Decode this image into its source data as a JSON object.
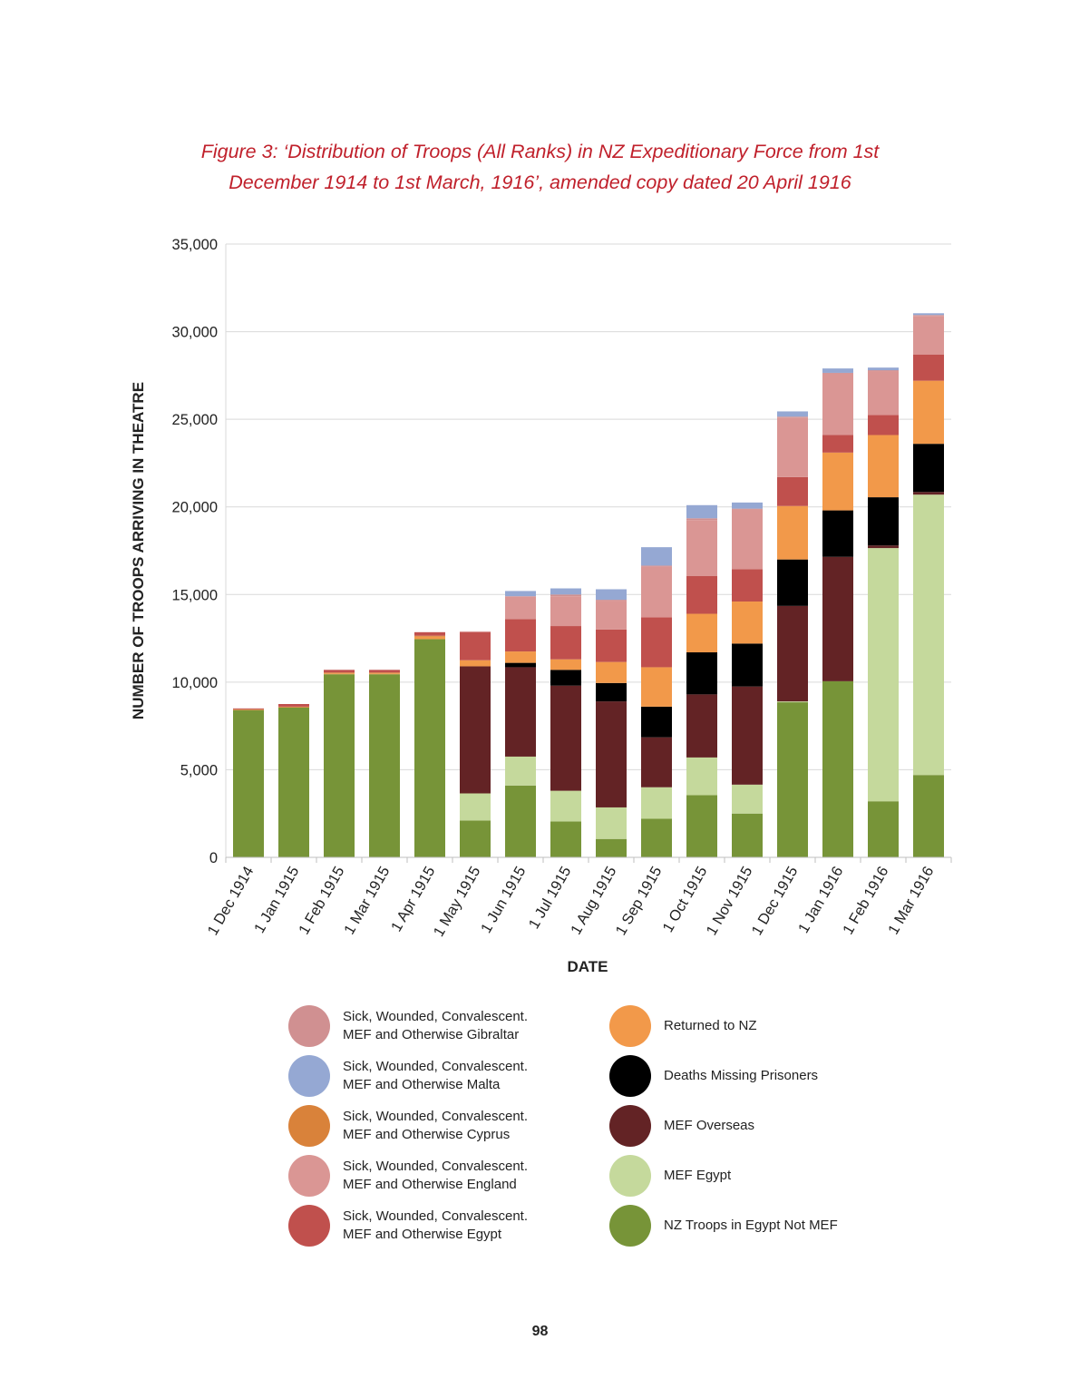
{
  "figure": {
    "title_line1": "Figure 3: ‘Distribution of Troops (All Ranks) in NZ Expeditionary Force from 1st",
    "title_line2": "December 1914 to 1st March, 1916’, amended copy dated 20 April 1916"
  },
  "page_number": "98",
  "chart_data": {
    "type": "bar",
    "stacked": true,
    "title": "Figure 3: ‘Distribution of Troops (All Ranks) in NZ Expeditionary Force from 1st December 1914 to 1st March, 1916’, amended copy dated 20 April 1916",
    "xlabel": "DATE",
    "ylabel": "NUMBER OF TROOPS ARRIVING IN THEATRE",
    "ylim": [
      0,
      35000
    ],
    "yticks": [
      0,
      5000,
      10000,
      15000,
      20000,
      25000,
      30000,
      35000
    ],
    "ytick_labels": [
      "0",
      "5,000",
      "10,000",
      "15,000",
      "20,000",
      "25,000",
      "30,000",
      "35,000"
    ],
    "grid": true,
    "legend_position": "bottom",
    "categories": [
      "1 Dec 1914",
      "1 Jan 1915",
      "1 Feb 1915",
      "1 Mar 1915",
      "1 Apr 1915",
      "1 May 1915",
      "1 Jun 1915",
      "1 Jul 1915",
      "1 Aug 1915",
      "1 Sep 1915",
      "1 Oct 1915",
      "1 Nov 1915",
      "1 Dec 1915",
      "1 Jan 1916",
      "1 Feb 1916",
      "1 Mar 1916"
    ],
    "series": [
      {
        "name": "NZ Troops in Egypt Not MEF",
        "color": "#779438",
        "values": [
          8400,
          8550,
          10450,
          10450,
          12450,
          2100,
          4100,
          2050,
          1050,
          2200,
          3550,
          2500,
          8850,
          10050,
          3200,
          4700
        ]
      },
      {
        "name": "MEF Egypt",
        "color": "#c5d99c",
        "values": [
          0,
          0,
          0,
          0,
          0,
          1550,
          1650,
          1750,
          1800,
          1800,
          2150,
          1650,
          50,
          0,
          14450,
          16000
        ]
      },
      {
        "name": "MEF Overseas",
        "color": "#632325",
        "values": [
          0,
          0,
          0,
          0,
          0,
          7250,
          5100,
          6000,
          6050,
          2850,
          3600,
          5600,
          5450,
          7100,
          150,
          150
        ]
      },
      {
        "name": "Deaths Missing Prisoners",
        "color": "#000000",
        "values": [
          0,
          0,
          0,
          0,
          0,
          0,
          250,
          900,
          1050,
          1750,
          2400,
          2450,
          2650,
          2650,
          2750,
          2750
        ]
      },
      {
        "name": "Returned to NZ",
        "color": "#f2994a",
        "values": [
          0,
          0,
          50,
          50,
          150,
          350,
          650,
          600,
          1200,
          2250,
          2200,
          2400,
          3050,
          3300,
          3550,
          3600
        ]
      },
      {
        "name": "Sick, Wounded, Convalescent. MEF and Otherwise Cyprus",
        "color": "#d9823a",
        "values": [
          50,
          50,
          50,
          50,
          50,
          0,
          0,
          0,
          0,
          0,
          0,
          0,
          0,
          0,
          0,
          0
        ]
      },
      {
        "name": "Sick, Wounded, Convalescent. MEF and Otherwise Egypt",
        "color": "#c0504d",
        "values": [
          50,
          150,
          150,
          150,
          200,
          1600,
          1850,
          1900,
          1850,
          2850,
          2150,
          1850,
          1650,
          1000,
          1150,
          1500
        ]
      },
      {
        "name": "Sick, Wounded, Convalescent. MEF and Otherwise England",
        "color": "#da9694",
        "values": [
          0,
          0,
          0,
          0,
          0,
          50,
          1300,
          1700,
          1650,
          2900,
          3200,
          3400,
          3400,
          3500,
          2500,
          2200
        ]
      },
      {
        "name": "Sick, Wounded, Convalescent. MEF and Otherwise Gibraltar",
        "color": "#d09091",
        "values": [
          0,
          0,
          0,
          0,
          0,
          0,
          0,
          100,
          50,
          50,
          100,
          50,
          50,
          50,
          50,
          50
        ]
      },
      {
        "name": "Sick, Wounded, Convalescent. MEF and Otherwise Malta",
        "color": "#95a8d3",
        "values": [
          0,
          0,
          0,
          0,
          0,
          0,
          300,
          350,
          600,
          1050,
          750,
          350,
          300,
          250,
          150,
          100
        ]
      }
    ]
  },
  "legend": {
    "left": [
      {
        "label": "Sick, Wounded, Convalescent.\nMEF and Otherwise Gibraltar",
        "color": "#d09091",
        "icon": "legend-swatch-circle"
      },
      {
        "label": "Sick, Wounded, Convalescent.\nMEF and Otherwise Malta",
        "color": "#95a8d3",
        "icon": "legend-swatch-circle"
      },
      {
        "label": "Sick, Wounded, Convalescent.\nMEF and Otherwise Cyprus",
        "color": "#d9823a",
        "icon": "legend-swatch-circle"
      },
      {
        "label": "Sick, Wounded, Convalescent.\nMEF and Otherwise England",
        "color": "#da9694",
        "icon": "legend-swatch-circle"
      },
      {
        "label": "Sick, Wounded, Convalescent.\nMEF and Otherwise Egypt",
        "color": "#c0504d",
        "icon": "legend-swatch-circle"
      }
    ],
    "right": [
      {
        "label": "Returned to NZ",
        "color": "#f2994a",
        "icon": "legend-swatch-circle"
      },
      {
        "label": "Deaths Missing Prisoners",
        "color": "#000000",
        "icon": "legend-swatch-circle"
      },
      {
        "label": "MEF Overseas",
        "color": "#632325",
        "icon": "legend-swatch-circle"
      },
      {
        "label": "MEF Egypt",
        "color": "#c5d99c",
        "icon": "legend-swatch-circle"
      },
      {
        "label": "NZ Troops in Egypt Not MEF",
        "color": "#779438",
        "icon": "legend-swatch-circle"
      }
    ]
  }
}
